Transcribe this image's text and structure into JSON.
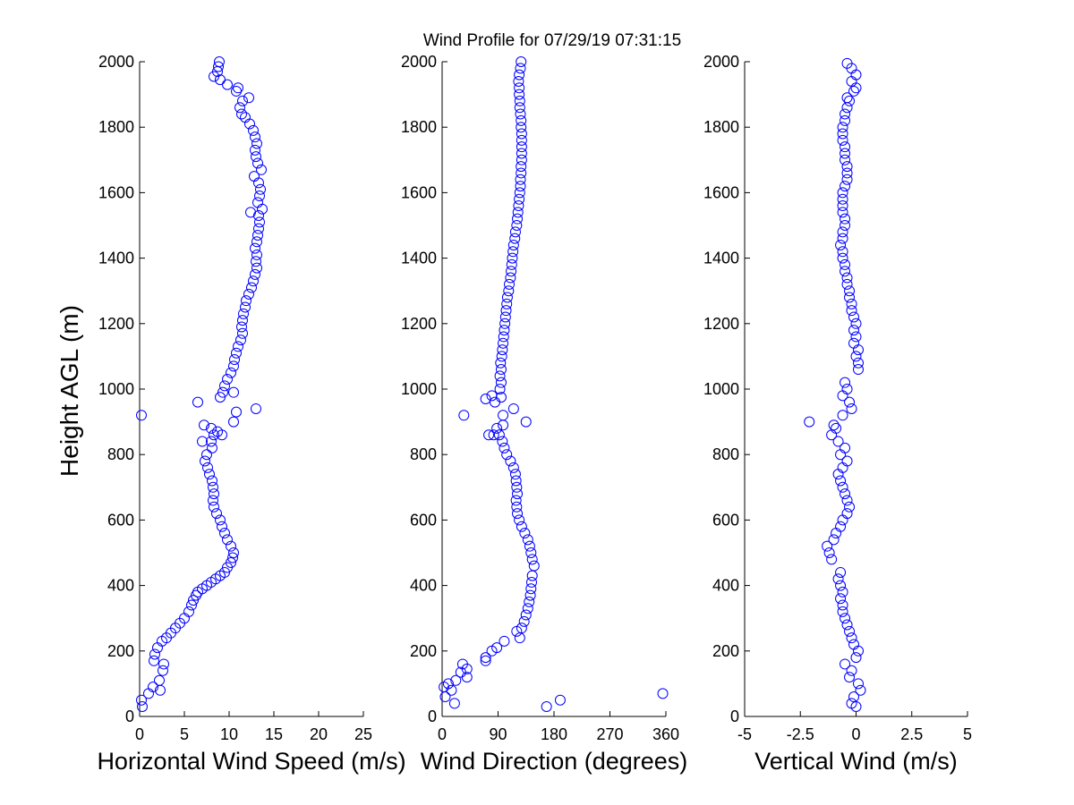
{
  "figure": {
    "title": "Wind Profile for  07/29/19 07:31:15",
    "ylabel": "Height AGL (m)"
  },
  "chart_data": [
    {
      "type": "scatter",
      "xlabel": "Horizontal Wind Speed (m/s)",
      "ylabel": "Height AGL (m)",
      "xlim": [
        0,
        25
      ],
      "ylim": [
        0,
        2000
      ],
      "xticks": [
        0,
        5,
        10,
        15,
        20,
        25
      ],
      "xtick_labels": [
        "0",
        "5",
        "10",
        "15",
        "20",
        "25"
      ],
      "yticks": [
        0,
        200,
        400,
        600,
        800,
        1000,
        1200,
        1400,
        1600,
        1800,
        2000
      ],
      "ytick_labels": [
        "0",
        "200",
        "400",
        "600",
        "800",
        "1000",
        "1200",
        "1400",
        "1600",
        "1800",
        "2000"
      ],
      "marker": "open-circle",
      "marker_color": "#0000ff",
      "points": [
        [
          0.3,
          30
        ],
        [
          0.2,
          50
        ],
        [
          1.0,
          70
        ],
        [
          1.5,
          90
        ],
        [
          2.3,
          80
        ],
        [
          2.2,
          110
        ],
        [
          2.6,
          140
        ],
        [
          2.7,
          160
        ],
        [
          1.6,
          170
        ],
        [
          1.7,
          190
        ],
        [
          2.0,
          210
        ],
        [
          2.5,
          230
        ],
        [
          3.0,
          240
        ],
        [
          3.5,
          255
        ],
        [
          4.0,
          270
        ],
        [
          4.5,
          285
        ],
        [
          5.0,
          300
        ],
        [
          5.5,
          320
        ],
        [
          5.8,
          340
        ],
        [
          6.0,
          355
        ],
        [
          6.3,
          370
        ],
        [
          6.5,
          380
        ],
        [
          7.0,
          390
        ],
        [
          7.5,
          400
        ],
        [
          8.0,
          410
        ],
        [
          8.5,
          420
        ],
        [
          9.0,
          430
        ],
        [
          9.5,
          440
        ],
        [
          9.8,
          455
        ],
        [
          10.2,
          470
        ],
        [
          10.4,
          485
        ],
        [
          10.5,
          500
        ],
        [
          10.2,
          520
        ],
        [
          9.8,
          540
        ],
        [
          9.5,
          560
        ],
        [
          9.2,
          580
        ],
        [
          9.0,
          600
        ],
        [
          8.6,
          620
        ],
        [
          8.3,
          640
        ],
        [
          8.2,
          660
        ],
        [
          8.3,
          680
        ],
        [
          8.2,
          700
        ],
        [
          8.1,
          720
        ],
        [
          7.8,
          740
        ],
        [
          7.6,
          760
        ],
        [
          7.3,
          780
        ],
        [
          7.5,
          800
        ],
        [
          8.1,
          820
        ],
        [
          8.0,
          840
        ],
        [
          8.3,
          860
        ],
        [
          8.0,
          880
        ],
        [
          7.2,
          890
        ],
        [
          8.7,
          870
        ],
        [
          7.0,
          840
        ],
        [
          9.2,
          860
        ],
        [
          10.8,
          930
        ],
        [
          10.5,
          900
        ],
        [
          13.0,
          940
        ],
        [
          6.5,
          960
        ],
        [
          0.2,
          920
        ],
        [
          9.0,
          975
        ],
        [
          9.3,
          990
        ],
        [
          10.5,
          990
        ],
        [
          9.5,
          1010
        ],
        [
          9.8,
          1030
        ],
        [
          10.2,
          1050
        ],
        [
          10.5,
          1070
        ],
        [
          10.6,
          1090
        ],
        [
          10.8,
          1110
        ],
        [
          11.0,
          1130
        ],
        [
          11.3,
          1150
        ],
        [
          11.5,
          1170
        ],
        [
          11.4,
          1190
        ],
        [
          11.5,
          1210
        ],
        [
          11.6,
          1230
        ],
        [
          11.8,
          1250
        ],
        [
          11.9,
          1270
        ],
        [
          12.2,
          1290
        ],
        [
          12.5,
          1310
        ],
        [
          12.7,
          1330
        ],
        [
          12.9,
          1350
        ],
        [
          13.1,
          1370
        ],
        [
          13.0,
          1390
        ],
        [
          13.1,
          1410
        ],
        [
          12.9,
          1430
        ],
        [
          13.1,
          1450
        ],
        [
          13.2,
          1470
        ],
        [
          13.3,
          1490
        ],
        [
          13.4,
          1510
        ],
        [
          13.3,
          1530
        ],
        [
          12.4,
          1540
        ],
        [
          13.7,
          1550
        ],
        [
          13.2,
          1570
        ],
        [
          13.4,
          1590
        ],
        [
          13.5,
          1610
        ],
        [
          13.3,
          1630
        ],
        [
          12.8,
          1650
        ],
        [
          13.6,
          1670
        ],
        [
          13.2,
          1690
        ],
        [
          13.0,
          1710
        ],
        [
          12.9,
          1730
        ],
        [
          13.1,
          1750
        ],
        [
          12.9,
          1770
        ],
        [
          12.7,
          1790
        ],
        [
          12.3,
          1810
        ],
        [
          11.8,
          1830
        ],
        [
          11.4,
          1840
        ],
        [
          11.2,
          1860
        ],
        [
          11.5,
          1880
        ],
        [
          12.2,
          1890
        ],
        [
          10.8,
          1910
        ],
        [
          11.0,
          1920
        ],
        [
          9.8,
          1930
        ],
        [
          9.0,
          1945
        ],
        [
          8.3,
          1955
        ],
        [
          8.7,
          1970
        ],
        [
          8.8,
          1985
        ],
        [
          8.9,
          2000
        ]
      ]
    },
    {
      "type": "scatter",
      "xlabel": "Wind Direction (degrees)",
      "xlim": [
        0,
        360
      ],
      "ylim": [
        0,
        2000
      ],
      "xticks": [
        0,
        90,
        180,
        270,
        360
      ],
      "xtick_labels": [
        "0",
        "90",
        "180",
        "270",
        "360"
      ],
      "yticks": [
        0,
        200,
        400,
        600,
        800,
        1000,
        1200,
        1400,
        1600,
        1800,
        2000
      ],
      "ytick_labels": [
        "0",
        "200",
        "400",
        "600",
        "800",
        "1000",
        "1200",
        "1400",
        "1600",
        "1800",
        "2000"
      ],
      "marker": "open-circle",
      "marker_color": "#0000ff",
      "points": [
        [
          20,
          40
        ],
        [
          5,
          60
        ],
        [
          15,
          80
        ],
        [
          3,
          90
        ],
        [
          10,
          100
        ],
        [
          22,
          110
        ],
        [
          40,
          120
        ],
        [
          30,
          135
        ],
        [
          40,
          145
        ],
        [
          33,
          160
        ],
        [
          70,
          170
        ],
        [
          70,
          180
        ],
        [
          80,
          200
        ],
        [
          88,
          210
        ],
        [
          100,
          230
        ],
        [
          125,
          240
        ],
        [
          120,
          260
        ],
        [
          128,
          270
        ],
        [
          132,
          290
        ],
        [
          135,
          310
        ],
        [
          138,
          330
        ],
        [
          140,
          350
        ],
        [
          142,
          370
        ],
        [
          143,
          390
        ],
        [
          144,
          410
        ],
        [
          145,
          430
        ],
        [
          148,
          460
        ],
        [
          145,
          480
        ],
        [
          143,
          500
        ],
        [
          141,
          520
        ],
        [
          138,
          540
        ],
        [
          133,
          560
        ],
        [
          128,
          580
        ],
        [
          124,
          600
        ],
        [
          121,
          620
        ],
        [
          120,
          640
        ],
        [
          119,
          660
        ],
        [
          121,
          680
        ],
        [
          120,
          700
        ],
        [
          119,
          720
        ],
        [
          118,
          740
        ],
        [
          115,
          760
        ],
        [
          110,
          780
        ],
        [
          104,
          800
        ],
        [
          100,
          820
        ],
        [
          97,
          840
        ],
        [
          92,
          860
        ],
        [
          83,
          860
        ],
        [
          88,
          880
        ],
        [
          75,
          860
        ],
        [
          98,
          890
        ],
        [
          115,
          940
        ],
        [
          98,
          920
        ],
        [
          135,
          900
        ],
        [
          35,
          920
        ],
        [
          85,
          960
        ],
        [
          70,
          970
        ],
        [
          95,
          975
        ],
        [
          80,
          980
        ],
        [
          93,
          1000
        ],
        [
          95,
          1020
        ],
        [
          93,
          1040
        ],
        [
          95,
          1060
        ],
        [
          94,
          1080
        ],
        [
          96,
          1100
        ],
        [
          97,
          1120
        ],
        [
          98,
          1140
        ],
        [
          99,
          1160
        ],
        [
          100,
          1180
        ],
        [
          101,
          1200
        ],
        [
          102,
          1220
        ],
        [
          103,
          1240
        ],
        [
          104,
          1260
        ],
        [
          105,
          1280
        ],
        [
          107,
          1300
        ],
        [
          108,
          1320
        ],
        [
          110,
          1340
        ],
        [
          111,
          1360
        ],
        [
          112,
          1380
        ],
        [
          113,
          1400
        ],
        [
          114,
          1420
        ],
        [
          115,
          1440
        ],
        [
          117,
          1460
        ],
        [
          118,
          1480
        ],
        [
          120,
          1500
        ],
        [
          121,
          1520
        ],
        [
          122,
          1540
        ],
        [
          123,
          1560
        ],
        [
          124,
          1580
        ],
        [
          125,
          1600
        ],
        [
          126,
          1620
        ],
        [
          126,
          1640
        ],
        [
          127,
          1660
        ],
        [
          127,
          1680
        ],
        [
          128,
          1700
        ],
        [
          128,
          1720
        ],
        [
          128,
          1740
        ],
        [
          128,
          1760
        ],
        [
          128,
          1780
        ],
        [
          127,
          1800
        ],
        [
          127,
          1820
        ],
        [
          126,
          1840
        ],
        [
          125,
          1860
        ],
        [
          125,
          1880
        ],
        [
          124,
          1900
        ],
        [
          124,
          1920
        ],
        [
          123,
          1940
        ],
        [
          124,
          1960
        ],
        [
          126,
          1980
        ],
        [
          127,
          2000
        ],
        [
          355,
          70
        ],
        [
          190,
          50
        ],
        [
          168,
          30
        ]
      ]
    },
    {
      "type": "scatter",
      "xlabel": "Vertical Wind (m/s)",
      "xlim": [
        -5,
        5
      ],
      "ylim": [
        0,
        2000
      ],
      "xticks": [
        -5,
        -2.5,
        0,
        2.5,
        5
      ],
      "xtick_labels": [
        "-5",
        "-2.5",
        "0",
        "2.5",
        "5"
      ],
      "yticks": [
        0,
        200,
        400,
        600,
        800,
        1000,
        1200,
        1400,
        1600,
        1800,
        2000
      ],
      "ytick_labels": [
        "0",
        "200",
        "400",
        "600",
        "800",
        "1000",
        "1200",
        "1400",
        "1600",
        "1800",
        "2000"
      ],
      "marker": "open-circle",
      "marker_color": "#0000ff",
      "points": [
        [
          0,
          30
        ],
        [
          -0.2,
          40
        ],
        [
          -0.1,
          60
        ],
        [
          0.2,
          80
        ],
        [
          0.1,
          100
        ],
        [
          -0.3,
          120
        ],
        [
          -0.2,
          140
        ],
        [
          -0.5,
          160
        ],
        [
          0,
          180
        ],
        [
          0.1,
          200
        ],
        [
          -0.1,
          220
        ],
        [
          -0.2,
          240
        ],
        [
          -0.3,
          260
        ],
        [
          -0.4,
          280
        ],
        [
          -0.5,
          300
        ],
        [
          -0.6,
          320
        ],
        [
          -0.6,
          340
        ],
        [
          -0.7,
          360
        ],
        [
          -0.6,
          380
        ],
        [
          -0.7,
          400
        ],
        [
          -0.8,
          420
        ],
        [
          -0.7,
          440
        ],
        [
          -1.1,
          480
        ],
        [
          -1.2,
          500
        ],
        [
          -1.3,
          520
        ],
        [
          -1.0,
          540
        ],
        [
          -0.9,
          560
        ],
        [
          -0.7,
          580
        ],
        [
          -0.6,
          600
        ],
        [
          -0.4,
          620
        ],
        [
          -0.3,
          640
        ],
        [
          -0.4,
          660
        ],
        [
          -0.5,
          680
        ],
        [
          -0.6,
          700
        ],
        [
          -0.7,
          720
        ],
        [
          -0.8,
          740
        ],
        [
          -0.6,
          760
        ],
        [
          -0.4,
          780
        ],
        [
          -0.7,
          800
        ],
        [
          -0.5,
          820
        ],
        [
          -0.8,
          840
        ],
        [
          -1.1,
          860
        ],
        [
          -0.9,
          880
        ],
        [
          -1.0,
          890
        ],
        [
          -2.1,
          900
        ],
        [
          -0.6,
          920
        ],
        [
          -0.2,
          940
        ],
        [
          -0.3,
          960
        ],
        [
          -0.6,
          980
        ],
        [
          -0.4,
          1000
        ],
        [
          -0.5,
          1020
        ],
        [
          0.1,
          1060
        ],
        [
          0.1,
          1080
        ],
        [
          0,
          1100
        ],
        [
          0.1,
          1120
        ],
        [
          -0.1,
          1140
        ],
        [
          0,
          1160
        ],
        [
          -0.1,
          1180
        ],
        [
          0,
          1200
        ],
        [
          -0.1,
          1220
        ],
        [
          -0.2,
          1240
        ],
        [
          -0.2,
          1260
        ],
        [
          -0.3,
          1280
        ],
        [
          -0.3,
          1300
        ],
        [
          -0.4,
          1320
        ],
        [
          -0.4,
          1340
        ],
        [
          -0.5,
          1360
        ],
        [
          -0.5,
          1380
        ],
        [
          -0.6,
          1400
        ],
        [
          -0.6,
          1420
        ],
        [
          -0.7,
          1440
        ],
        [
          -0.6,
          1460
        ],
        [
          -0.6,
          1480
        ],
        [
          -0.5,
          1500
        ],
        [
          -0.5,
          1520
        ],
        [
          -0.6,
          1540
        ],
        [
          -0.6,
          1560
        ],
        [
          -0.6,
          1580
        ],
        [
          -0.6,
          1600
        ],
        [
          -0.5,
          1620
        ],
        [
          -0.4,
          1640
        ],
        [
          -0.4,
          1660
        ],
        [
          -0.4,
          1680
        ],
        [
          -0.5,
          1700
        ],
        [
          -0.5,
          1720
        ],
        [
          -0.5,
          1740
        ],
        [
          -0.6,
          1760
        ],
        [
          -0.6,
          1780
        ],
        [
          -0.6,
          1800
        ],
        [
          -0.5,
          1820
        ],
        [
          -0.5,
          1840
        ],
        [
          -0.4,
          1860
        ],
        [
          -0.3,
          1880
        ],
        [
          -0.4,
          1890
        ],
        [
          -0.1,
          1910
        ],
        [
          0,
          1920
        ],
        [
          -0.2,
          1940
        ],
        [
          0,
          1960
        ],
        [
          -0.2,
          1980
        ],
        [
          -0.4,
          1995
        ]
      ]
    }
  ]
}
